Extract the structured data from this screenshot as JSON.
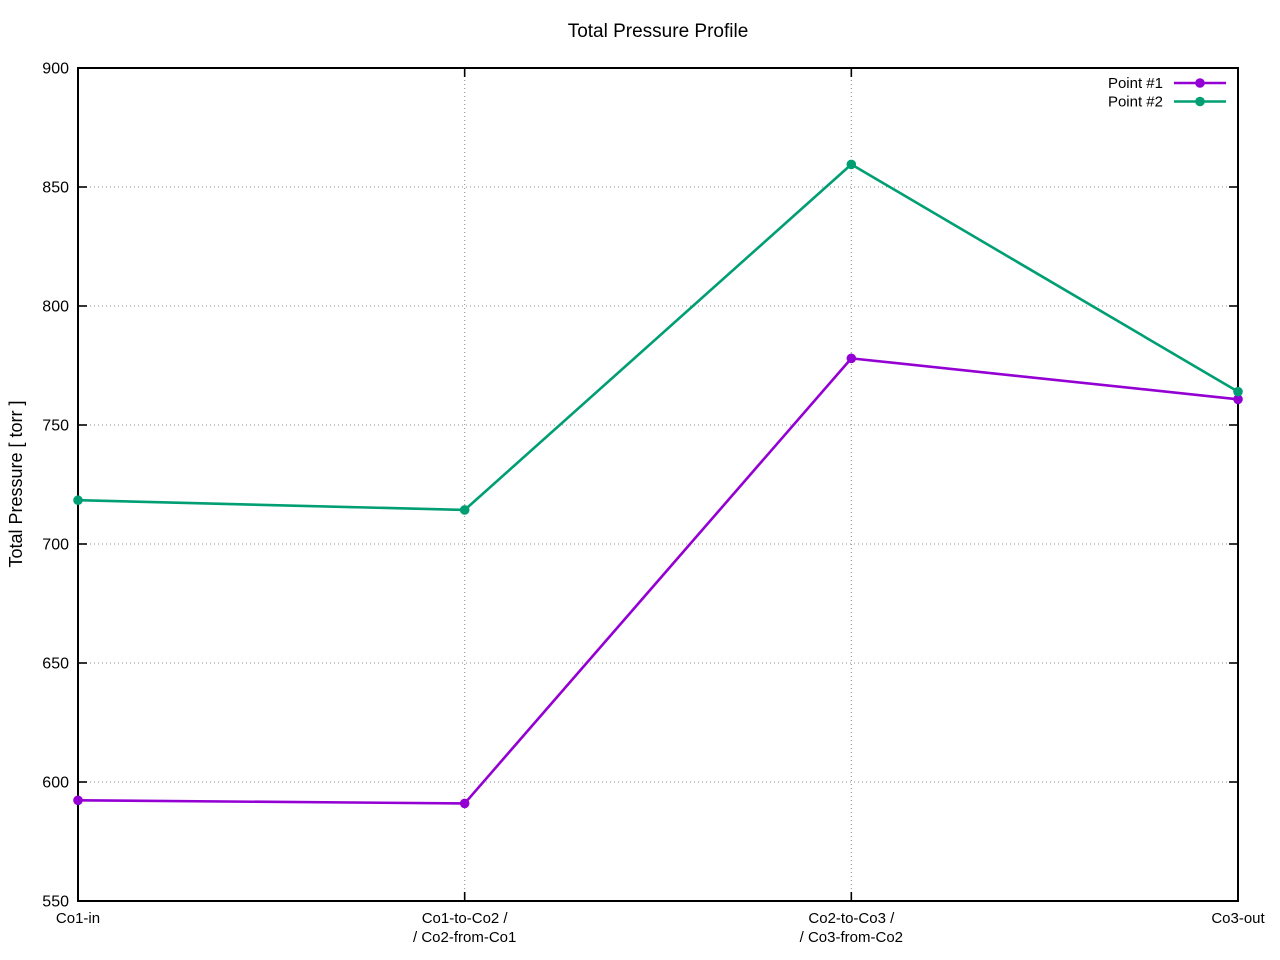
{
  "chart_data": {
    "type": "line",
    "title": "Total Pressure Profile",
    "xlabel": "",
    "ylabel": "Total Pressure [ torr ]",
    "categories": [
      "Co1-in",
      "Co1-to-Co2 /\n/ Co2-from-Co1",
      "Co2-to-Co3 /\n/ Co3-from-Co2",
      "Co3-out"
    ],
    "series": [
      {
        "name": "Point #1",
        "color": "#9400d3",
        "values": [
          592.3,
          591.0,
          778.0,
          760.8
        ]
      },
      {
        "name": "Point #2",
        "color": "#009e73",
        "values": [
          718.4,
          714.3,
          859.5,
          764.0
        ]
      }
    ],
    "ylim": [
      550,
      900
    ],
    "yticks": [
      550,
      600,
      650,
      700,
      750,
      800,
      850,
      900
    ],
    "ytick_step": 50,
    "grid": true,
    "grid_style": "dotted",
    "border": true,
    "marker": "filled-circle",
    "legend_position": "top-right",
    "axis_color": "#000000",
    "grid_color": "#8c8c8c",
    "background_color": "#ffffff"
  }
}
